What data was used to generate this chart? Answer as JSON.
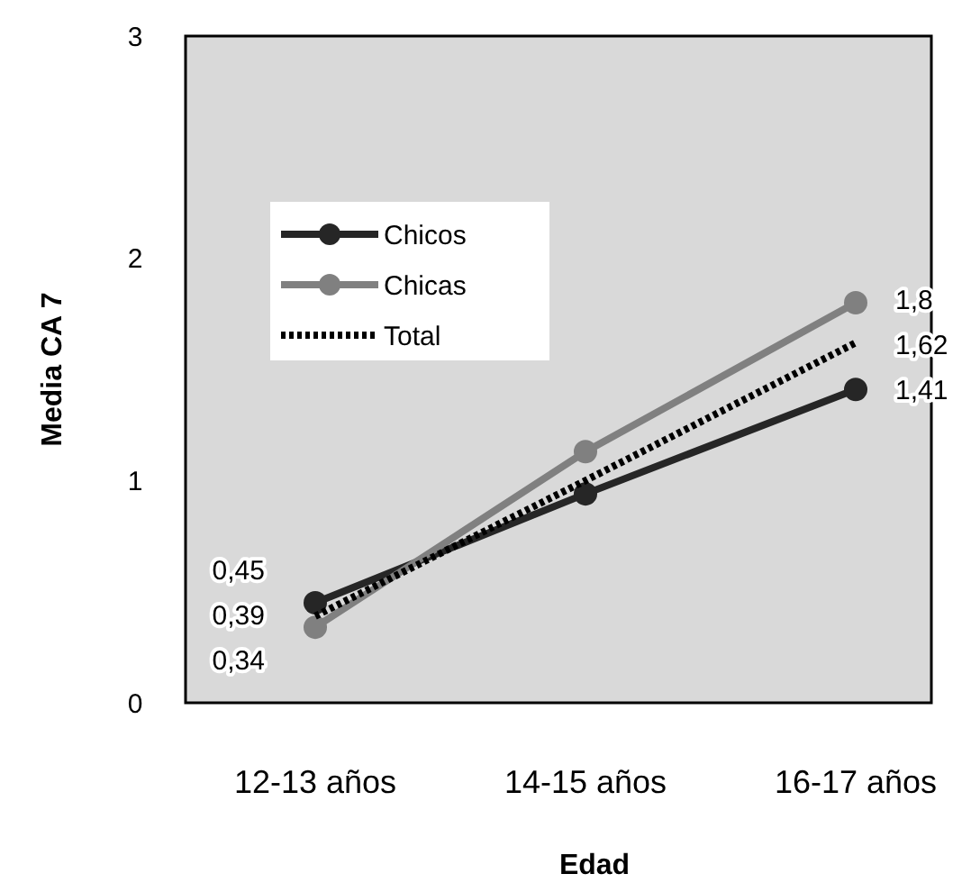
{
  "chart_data": {
    "type": "line",
    "xlabel": "Edad",
    "ylabel": "Media CA 7",
    "categories": [
      "12-13 años",
      "14-15 años",
      "16-17 años"
    ],
    "series": [
      {
        "name": "Chicos",
        "color": "#262626",
        "values": [
          0.45,
          0.94,
          1.41
        ],
        "value_labels": [
          "0,45",
          null,
          "1,41"
        ],
        "marker": "circle",
        "line_style": "solid"
      },
      {
        "name": "Chicas",
        "color": "#808080",
        "values": [
          0.34,
          1.13,
          1.8
        ],
        "value_labels": [
          "0,34",
          null,
          "1,8"
        ],
        "marker": "circle",
        "line_style": "solid"
      },
      {
        "name": "Total",
        "color": "#000000",
        "values": [
          0.39,
          1.0,
          1.62
        ],
        "value_labels": [
          "0,39",
          null,
          "1,62"
        ],
        "marker": "none",
        "line_style": "dotted"
      }
    ],
    "ylim": [
      0,
      3
    ],
    "yticks": [
      0,
      1,
      2,
      3
    ],
    "grid": false,
    "legend": "top left"
  }
}
